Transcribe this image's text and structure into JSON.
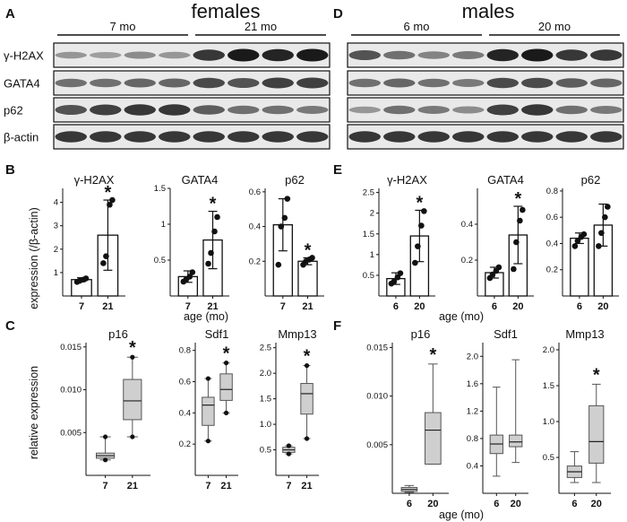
{
  "panels": {
    "A": "A",
    "B": "B",
    "C": "C",
    "D": "D",
    "E": "E",
    "F": "F"
  },
  "blots": [
    {
      "sex_title": "females",
      "group_labels": [
        "7 mo",
        "21 mo"
      ],
      "lanes_per_group": 4,
      "rows": [
        {
          "label": "γ-H2AX",
          "intensities": [
            0.35,
            0.3,
            0.4,
            0.35,
            0.85,
            1.0,
            0.95,
            1.0
          ]
        },
        {
          "label": "GATA4",
          "intensities": [
            0.55,
            0.55,
            0.6,
            0.6,
            0.75,
            0.7,
            0.8,
            0.8
          ]
        },
        {
          "label": "p62",
          "intensities": [
            0.7,
            0.8,
            0.85,
            0.85,
            0.65,
            0.55,
            0.55,
            0.5
          ]
        },
        {
          "label": "β-actin",
          "intensities": [
            0.85,
            0.85,
            0.85,
            0.85,
            0.85,
            0.85,
            0.85,
            0.85
          ]
        }
      ]
    },
    {
      "sex_title": "males",
      "group_labels": [
        "6 mo",
        "20 mo"
      ],
      "lanes_per_group": 4,
      "rows": [
        {
          "label": "γ-H2AX",
          "intensities": [
            0.7,
            0.55,
            0.45,
            0.5,
            0.95,
            1.0,
            0.85,
            0.85
          ]
        },
        {
          "label": "GATA4",
          "intensities": [
            0.55,
            0.6,
            0.55,
            0.5,
            0.75,
            0.75,
            0.65,
            0.6
          ]
        },
        {
          "label": "p62",
          "intensities": [
            0.35,
            0.55,
            0.5,
            0.4,
            0.8,
            0.85,
            0.55,
            0.5
          ]
        },
        {
          "label": "β-actin",
          "intensities": [
            0.85,
            0.85,
            0.85,
            0.85,
            0.85,
            0.85,
            0.85,
            0.85
          ]
        }
      ]
    }
  ],
  "bar_ylabel": "expression (/β-actin)",
  "box_ylabel": "relative expression",
  "xlabel": "age (mo)",
  "chart_data": [
    {
      "type": "bar",
      "panel": "B",
      "title": "γ-H2AX",
      "categories": [
        "7",
        "21"
      ],
      "values": [
        0.7,
        2.6
      ],
      "errors": [
        0.08,
        1.5
      ],
      "points": [
        [
          0.6,
          0.65,
          0.7,
          0.75
        ],
        [
          1.4,
          1.7,
          3.9,
          4.1
        ]
      ],
      "ylim": [
        0,
        4.6
      ],
      "yticks": [
        1,
        2,
        3,
        4
      ],
      "sig": [
        false,
        true
      ]
    },
    {
      "type": "bar",
      "panel": "B",
      "title": "GATA4",
      "categories": [
        "7",
        "21"
      ],
      "values": [
        0.27,
        0.78
      ],
      "errors": [
        0.08,
        0.4
      ],
      "points": [
        [
          0.2,
          0.23,
          0.27,
          0.33
        ],
        [
          0.45,
          0.6,
          0.9,
          1.1
        ]
      ],
      "ylim": [
        0,
        1.5
      ],
      "yticks": [
        0.5,
        1.0,
        1.5
      ],
      "sig": [
        false,
        true
      ]
    },
    {
      "type": "bar",
      "panel": "B",
      "title": "p62",
      "categories": [
        "7",
        "21"
      ],
      "values": [
        0.41,
        0.2
      ],
      "errors": [
        0.15,
        0.02
      ],
      "points": [
        [
          0.18,
          0.4,
          0.45,
          0.56
        ],
        [
          0.18,
          0.2,
          0.21,
          0.22
        ]
      ],
      "ylim": [
        0,
        0.62
      ],
      "yticks": [
        0.2,
        0.4,
        0.6
      ],
      "sig": [
        false,
        true
      ]
    },
    {
      "type": "bar",
      "panel": "E",
      "title": "γ-H2AX",
      "categories": [
        "6",
        "20"
      ],
      "values": [
        0.42,
        1.45
      ],
      "errors": [
        0.14,
        0.62
      ],
      "points": [
        [
          0.3,
          0.35,
          0.45,
          0.55
        ],
        [
          0.8,
          1.2,
          1.7,
          2.05
        ]
      ],
      "ylim": [
        0,
        2.6
      ],
      "yticks": [
        0.5,
        1.0,
        1.5,
        2.0,
        2.5
      ],
      "sig": [
        false,
        true
      ]
    },
    {
      "type": "bar",
      "panel": "E",
      "title": "GATA4",
      "categories": [
        "6",
        "20"
      ],
      "values": [
        0.13,
        0.34
      ],
      "errors": [
        0.03,
        0.16
      ],
      "points": [
        [
          0.1,
          0.12,
          0.14,
          0.16
        ],
        [
          0.15,
          0.3,
          0.42,
          0.48
        ]
      ],
      "ylim": [
        0,
        0.6
      ],
      "yticks": [
        0.2,
        0.4
      ],
      "sig": [
        false,
        true
      ]
    },
    {
      "type": "bar",
      "panel": "E",
      "title": "p62",
      "categories": [
        "6",
        "20"
      ],
      "values": [
        0.44,
        0.54
      ],
      "errors": [
        0.04,
        0.16
      ],
      "points": [
        [
          0.38,
          0.42,
          0.45,
          0.47
        ],
        [
          0.38,
          0.48,
          0.6,
          0.68
        ]
      ],
      "ylim": [
        0,
        0.82
      ],
      "yticks": [
        0.2,
        0.4,
        0.6,
        0.8
      ],
      "sig": [
        false,
        false
      ]
    },
    {
      "type": "box",
      "panel": "C",
      "title": "p16",
      "categories": [
        "7",
        "21"
      ],
      "boxes": [
        {
          "min": 0.0018,
          "q1": 0.002,
          "median": 0.0023,
          "q3": 0.0026,
          "max": 0.0045,
          "outliers": [
            0.0018,
            0.0045
          ]
        },
        {
          "min": 0.0045,
          "q1": 0.0065,
          "median": 0.0087,
          "q3": 0.0112,
          "max": 0.0138,
          "outliers": [
            0.0045,
            0.0138
          ]
        }
      ],
      "ylim": [
        0,
        0.0155
      ],
      "yticks": [
        0.005,
        0.01,
        0.015
      ],
      "ytick_labels": [
        "0.005",
        "0.010",
        "0.015"
      ],
      "sig": [
        false,
        true
      ]
    },
    {
      "type": "box",
      "panel": "C",
      "title": "Sdf1",
      "categories": [
        "7",
        "21"
      ],
      "boxes": [
        {
          "min": 0.22,
          "q1": 0.32,
          "median": 0.45,
          "q3": 0.5,
          "max": 0.62,
          "outliers": [
            0.22,
            0.62
          ]
        },
        {
          "min": 0.4,
          "q1": 0.48,
          "median": 0.55,
          "q3": 0.65,
          "max": 0.72,
          "outliers": [
            0.4,
            0.72
          ]
        }
      ],
      "ylim": [
        0,
        0.85
      ],
      "yticks": [
        0.2,
        0.4,
        0.6,
        0.8
      ],
      "ytick_labels": [
        "0.2",
        "0.4",
        "0.6",
        "0.8"
      ],
      "sig": [
        false,
        true
      ]
    },
    {
      "type": "box",
      "panel": "C",
      "title": "Mmp13",
      "categories": [
        "7",
        "21"
      ],
      "boxes": [
        {
          "min": 0.42,
          "q1": 0.45,
          "median": 0.5,
          "q3": 0.55,
          "max": 0.58,
          "outliers": [
            0.42,
            0.58
          ]
        },
        {
          "min": 0.72,
          "q1": 1.2,
          "median": 1.6,
          "q3": 1.8,
          "max": 2.15,
          "outliers": [
            0.72,
            2.15
          ]
        }
      ],
      "ylim": [
        0,
        2.6
      ],
      "yticks": [
        0.5,
        1.0,
        1.5,
        2.0,
        2.5
      ],
      "ytick_labels": [
        "0.5",
        "1.0",
        "1.5",
        "2.0",
        "2.5"
      ],
      "sig": [
        false,
        true
      ]
    },
    {
      "type": "box",
      "panel": "F",
      "title": "p16",
      "categories": [
        "6",
        "20"
      ],
      "boxes": [
        {
          "min": 0.0001,
          "q1": 0.0002,
          "median": 0.0004,
          "q3": 0.0006,
          "max": 0.0008,
          "outliers": []
        },
        {
          "min": 0.003,
          "q1": 0.003,
          "median": 0.0065,
          "q3": 0.0083,
          "max": 0.0133,
          "outliers": []
        }
      ],
      "ylim": [
        0,
        0.0155
      ],
      "yticks": [
        0.005,
        0.01,
        0.015
      ],
      "ytick_labels": [
        "0.005",
        "0.010",
        "0.015"
      ],
      "sig": [
        false,
        true
      ]
    },
    {
      "type": "box",
      "panel": "F",
      "title": "Sdf1",
      "categories": [
        "6",
        "20"
      ],
      "boxes": [
        {
          "min": 0.25,
          "q1": 0.58,
          "median": 0.72,
          "q3": 0.85,
          "max": 1.55,
          "outliers": []
        },
        {
          "min": 0.45,
          "q1": 0.68,
          "median": 0.75,
          "q3": 0.85,
          "max": 1.95,
          "outliers": []
        }
      ],
      "ylim": [
        0,
        2.2
      ],
      "yticks": [
        0.4,
        0.8,
        1.2,
        1.6,
        2.0
      ],
      "ytick_labels": [
        "0.4",
        "0.8",
        "1.2",
        "1.6",
        "2.0"
      ],
      "sig": [
        false,
        false
      ]
    },
    {
      "type": "box",
      "panel": "F",
      "title": "Mmp13",
      "categories": [
        "6",
        "20"
      ],
      "boxes": [
        {
          "min": 0.15,
          "q1": 0.22,
          "median": 0.3,
          "q3": 0.38,
          "max": 0.58,
          "outliers": []
        },
        {
          "min": 0.15,
          "q1": 0.42,
          "median": 0.72,
          "q3": 1.22,
          "max": 1.52,
          "outliers": []
        }
      ],
      "ylim": [
        0,
        2.1
      ],
      "yticks": [
        0.5,
        1.0,
        1.5,
        2.0
      ],
      "ytick_labels": [
        "0.5",
        "1.0",
        "1.5",
        "2.0"
      ],
      "sig": [
        false,
        true
      ]
    }
  ]
}
